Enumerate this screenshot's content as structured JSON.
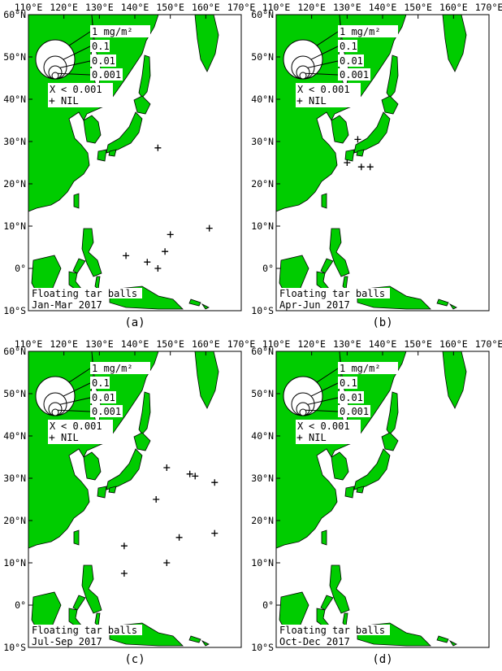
{
  "lon_labels": [
    "110°E",
    "120°E",
    "130°E",
    "140°E",
    "150°E",
    "160°E",
    "170°E"
  ],
  "lat_labels": [
    "60°N",
    "50°N",
    "40°N",
    "30°N",
    "20°N",
    "10°N",
    "0°",
    "10°S"
  ],
  "legend": {
    "sizes": [
      "1 mg/m²",
      "0.1",
      "0.01",
      "0.001"
    ],
    "x_label": "< 0.001",
    "x_symbol": "X",
    "plus_label": "NIL",
    "plus_symbol": "+"
  },
  "colors": {
    "land": "#00cc00",
    "sea": "#ffffff",
    "ink": "#000000"
  },
  "panels": [
    {
      "letter": "(a)",
      "title": "Floating tar balls",
      "period": "Jan-Mar 2017",
      "points": [
        [
          146.5,
          28.5
        ],
        [
          150,
          8
        ],
        [
          161,
          9.5
        ],
        [
          148.5,
          4
        ],
        [
          137.5,
          3
        ],
        [
          143.5,
          1.5
        ],
        [
          146.5,
          0
        ]
      ]
    },
    {
      "letter": "(b)",
      "title": "Floating tar balls",
      "period": "Apr-Jun 2017",
      "points": [
        [
          133,
          30.5
        ],
        [
          130,
          25
        ],
        [
          134,
          24
        ],
        [
          136.5,
          24
        ]
      ]
    },
    {
      "letter": "(c)",
      "title": "Floating tar balls",
      "period": "Jul-Sep 2017",
      "points": [
        [
          149,
          32.5
        ],
        [
          155.5,
          31
        ],
        [
          157,
          30.5
        ],
        [
          162.5,
          29
        ],
        [
          146,
          25
        ],
        [
          152.5,
          16
        ],
        [
          162.5,
          17
        ],
        [
          137,
          14
        ],
        [
          149,
          10
        ],
        [
          137,
          7.5
        ]
      ]
    },
    {
      "letter": "(d)",
      "title": "Floating tar balls",
      "period": "Oct-Dec 2017",
      "points": []
    }
  ]
}
